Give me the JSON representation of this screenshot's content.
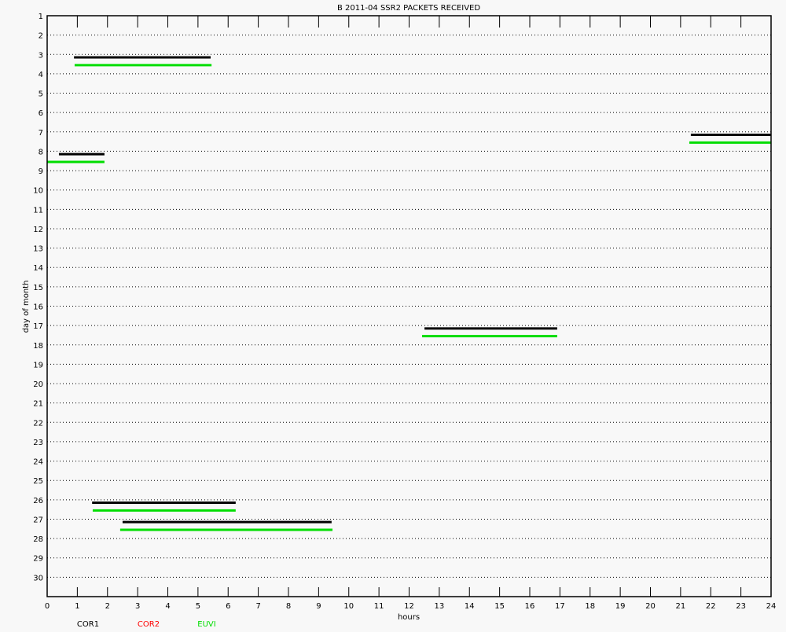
{
  "chart_data": {
    "type": "timeline",
    "title": "B  2011-04 SSR2 PACKETS RECEIVED",
    "xlabel": "hours",
    "ylabel": "day of month",
    "xlim": [
      0,
      24
    ],
    "ylim": [
      1,
      31
    ],
    "x_ticks": [
      0,
      1,
      2,
      3,
      4,
      5,
      6,
      7,
      8,
      9,
      10,
      11,
      12,
      13,
      14,
      15,
      16,
      17,
      18,
      19,
      20,
      21,
      22,
      23,
      24
    ],
    "y_ticks": [
      1,
      2,
      3,
      4,
      5,
      6,
      7,
      8,
      9,
      10,
      11,
      12,
      13,
      14,
      15,
      16,
      17,
      18,
      19,
      20,
      21,
      22,
      23,
      24,
      25,
      26,
      27,
      28,
      29,
      30
    ],
    "grid": "dotted horizontal",
    "legend_placement": "bottom-left",
    "series": [
      {
        "name": "COR1",
        "color": "#000000",
        "segments": [
          {
            "day": 3,
            "start": 0.89,
            "end": 5.42
          },
          {
            "day": 7,
            "start": 21.34,
            "end": 24
          },
          {
            "day": 8,
            "start": 0.39,
            "end": 1.9
          },
          {
            "day": 17,
            "start": 12.51,
            "end": 16.91
          },
          {
            "day": 26,
            "start": 1.49,
            "end": 6.25
          },
          {
            "day": 27,
            "start": 2.5,
            "end": 9.43
          }
        ]
      },
      {
        "name": "COR2",
        "color": "#ff0000",
        "segments": []
      },
      {
        "name": "EUVI",
        "color": "#00dd00",
        "segments": [
          {
            "day": 3,
            "start": 0.91,
            "end": 5.45
          },
          {
            "day": 7,
            "start": 21.29,
            "end": 24
          },
          {
            "day": 8,
            "start": 0,
            "end": 1.9
          },
          {
            "day": 17,
            "start": 12.43,
            "end": 16.91
          },
          {
            "day": 26,
            "start": 1.51,
            "end": 6.25
          },
          {
            "day": 27,
            "start": 2.42,
            "end": 9.46
          }
        ]
      }
    ]
  }
}
